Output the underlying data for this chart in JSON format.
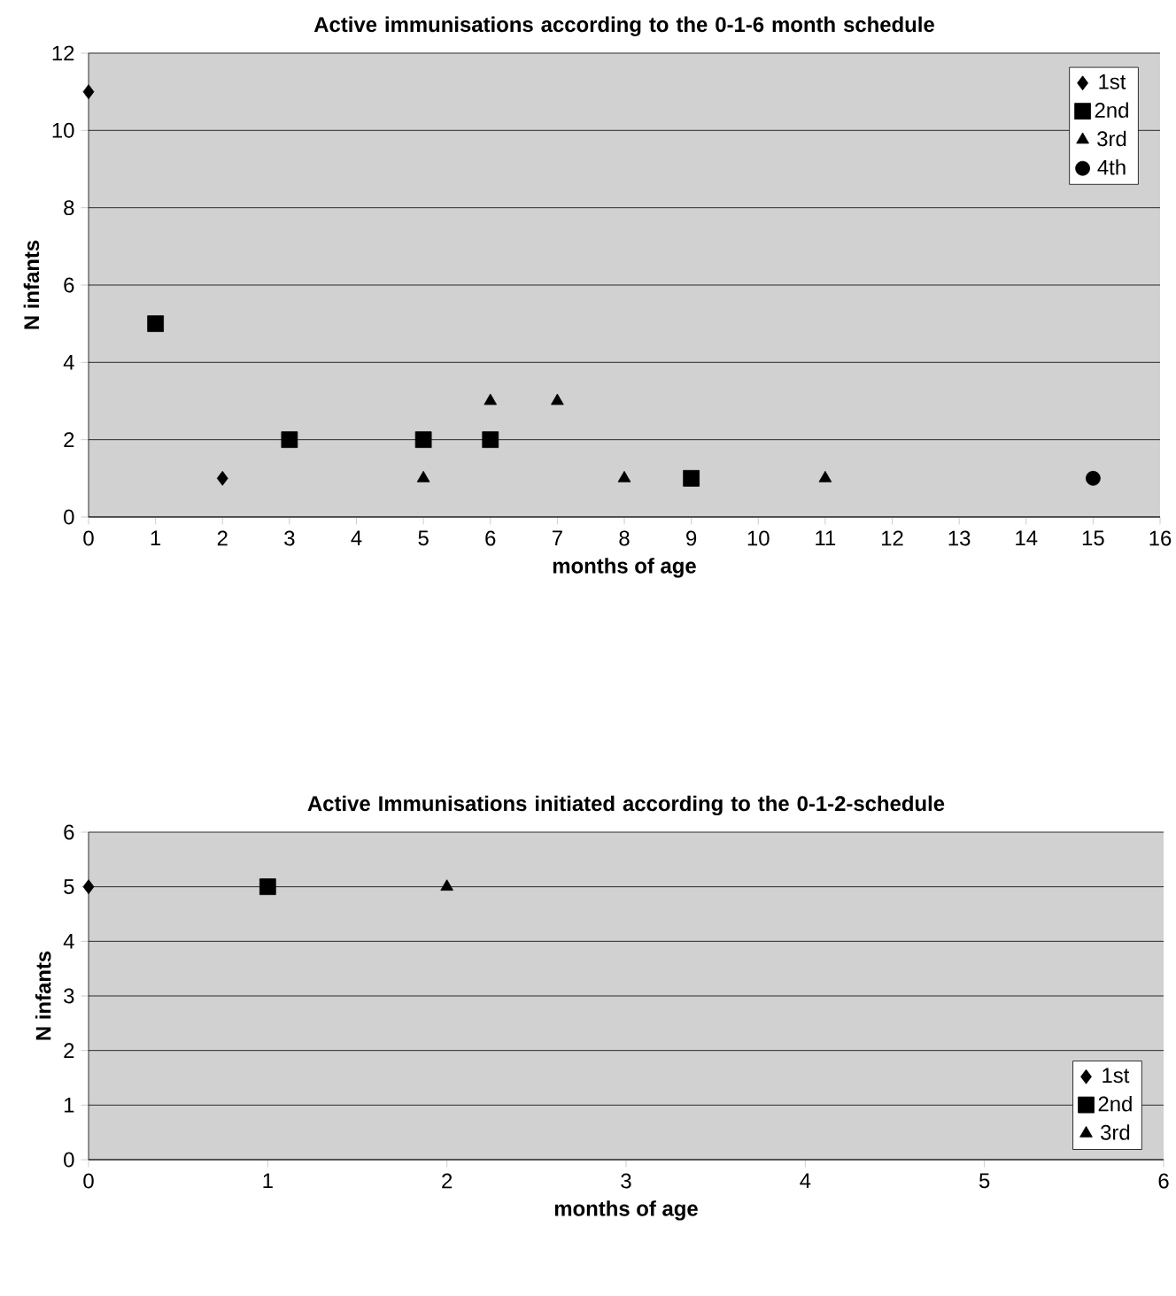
{
  "chart_data": [
    {
      "type": "scatter",
      "title": "Active immunisations according to the 0-1-6 month schedule",
      "xlabel": "months of age",
      "ylabel": "N infants",
      "xlim": [
        0,
        16
      ],
      "xticks": [
        0,
        1,
        2,
        3,
        4,
        5,
        6,
        7,
        8,
        9,
        10,
        11,
        12,
        13,
        14,
        15,
        16
      ],
      "ylim": [
        0,
        12
      ],
      "yticks": [
        0,
        2,
        4,
        6,
        8,
        10,
        12
      ],
      "grid": "y",
      "legend": "top right",
      "series": [
        {
          "name": "1st",
          "color": "#000000",
          "marker": "diamond",
          "x": [
            0,
            2
          ],
          "values": [
            11,
            1
          ]
        },
        {
          "name": "2nd",
          "color": "#000000",
          "marker": "square",
          "x": [
            1,
            3,
            5,
            6,
            9
          ],
          "values": [
            5,
            2,
            2,
            2,
            1
          ]
        },
        {
          "name": "3rd",
          "color": "#000000",
          "marker": "triangle",
          "x": [
            5,
            6,
            7,
            8,
            11
          ],
          "values": [
            1,
            3,
            3,
            1,
            1
          ]
        },
        {
          "name": "4th",
          "color": "#000000",
          "marker": "circle",
          "x": [
            15
          ],
          "values": [
            1
          ]
        }
      ]
    },
    {
      "type": "scatter",
      "title": "Active Immunisations initiated according to the 0-1-2-schedule",
      "xlabel": "months of age",
      "ylabel": "N infants",
      "xlim": [
        0,
        6
      ],
      "xticks": [
        0,
        1,
        2,
        3,
        4,
        5,
        6
      ],
      "ylim": [
        0,
        6
      ],
      "yticks": [
        0,
        1,
        2,
        3,
        4,
        5,
        6
      ],
      "grid": "y",
      "legend": "bottom right",
      "series": [
        {
          "name": "1st",
          "color": "#000000",
          "marker": "diamond",
          "x": [
            0
          ],
          "values": [
            5
          ]
        },
        {
          "name": "2nd",
          "color": "#000000",
          "marker": "square",
          "x": [
            1
          ],
          "values": [
            5
          ]
        },
        {
          "name": "3rd",
          "color": "#000000",
          "marker": "triangle",
          "x": [
            2
          ],
          "values": [
            5
          ]
        }
      ]
    }
  ]
}
